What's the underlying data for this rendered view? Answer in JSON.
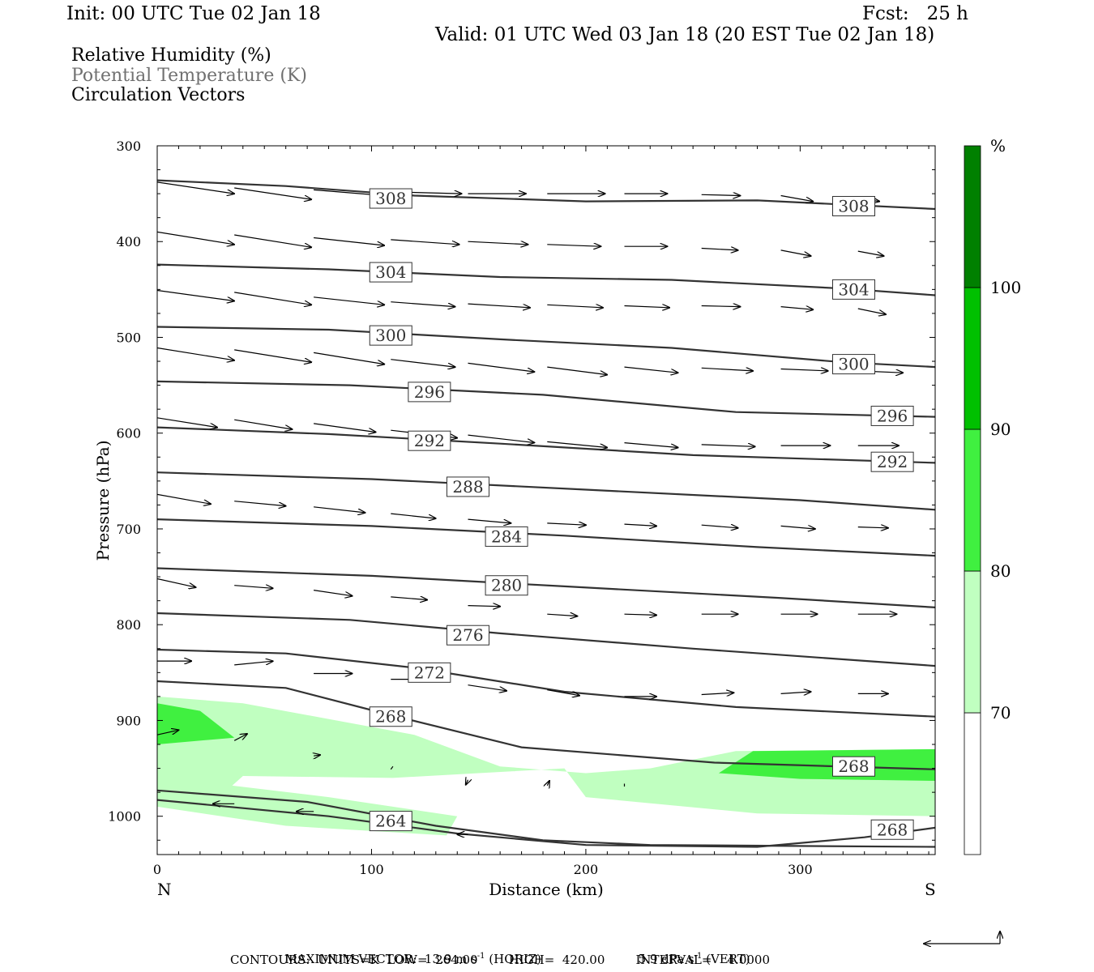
{
  "header": {
    "init": "Init: 00 UTC Tue 02 Jan 18",
    "fcst": "Fcst:   25 h",
    "valid": "Valid: 01 UTC Wed 03 Jan 18 (20 EST Tue 02 Jan 18)"
  },
  "fields": [
    {
      "label": "Relative Humidity (%)",
      "color": "#000000"
    },
    {
      "label": "Potential Temperature (K)",
      "color": "#707070"
    },
    {
      "label": "Circulation Vectors",
      "color": "#000000"
    }
  ],
  "colorbar": {
    "unit": "%",
    "ticks": [
      "70",
      "80",
      "90",
      "100"
    ],
    "bands": [
      {
        "from": 60,
        "to": 70,
        "color": "#ffffff"
      },
      {
        "from": 70,
        "to": 80,
        "color": "#c0ffc0"
      },
      {
        "from": 80,
        "to": 90,
        "color": "#40f040"
      },
      {
        "from": 90,
        "to": 100,
        "color": "#00c000"
      },
      {
        "from": 100,
        "to": 110,
        "color": "#008000"
      }
    ]
  },
  "footer": {
    "max_vector_prefix": "MAXIMUM VECTOR:  13.9 m s",
    "max_vector_horiz_suffix": " (HORIZ)",
    "max_vector_vert_prefix": "5.9 dPa s",
    "max_vector_vert_suffix": " (VERT)",
    "exponent": "-1",
    "contours": "CONTOURS:  UNITS=K  LOW=  264.00        HIGH=  420.00        INTERVAL=    4.0000"
  },
  "chart_data": {
    "type": "cross-section contour",
    "xlabel": "Distance (km)",
    "ylabel": "Pressure (hPa)",
    "xlim": [
      0,
      363
    ],
    "ylim": [
      300,
      1040
    ],
    "x_ticks": [
      "0",
      "100",
      "200",
      "300"
    ],
    "y_ticks": [
      "300",
      "400",
      "500",
      "600",
      "700",
      "800",
      "900",
      "1000"
    ],
    "left_end_label": "N",
    "right_end_label": "S",
    "theta_contours": [
      {
        "theta": "308",
        "points": [
          [
            0,
            336
          ],
          [
            60,
            342
          ],
          [
            120,
            352
          ],
          [
            200,
            358
          ],
          [
            280,
            357
          ],
          [
            363,
            366
          ]
        ],
        "labels": [
          [
            109,
            355
          ],
          [
            325,
            363
          ]
        ]
      },
      {
        "theta": "304",
        "points": [
          [
            0,
            424
          ],
          [
            80,
            429
          ],
          [
            160,
            437
          ],
          [
            240,
            440
          ],
          [
            320,
            449
          ],
          [
            363,
            456
          ]
        ],
        "labels": [
          [
            109,
            432
          ],
          [
            325,
            450
          ]
        ]
      },
      {
        "theta": "300",
        "points": [
          [
            0,
            489
          ],
          [
            80,
            492
          ],
          [
            160,
            502
          ],
          [
            240,
            511
          ],
          [
            320,
            526
          ],
          [
            363,
            531
          ]
        ],
        "labels": [
          [
            109,
            498
          ],
          [
            325,
            528
          ]
        ]
      },
      {
        "theta": "296",
        "points": [
          [
            0,
            546
          ],
          [
            90,
            550
          ],
          [
            180,
            560
          ],
          [
            270,
            578
          ],
          [
            363,
            583
          ]
        ],
        "labels": [
          [
            127,
            557
          ],
          [
            343,
            582
          ]
        ]
      },
      {
        "theta": "292",
        "points": [
          [
            0,
            594
          ],
          [
            80,
            601
          ],
          [
            160,
            611
          ],
          [
            250,
            623
          ],
          [
            363,
            631
          ]
        ],
        "labels": [
          [
            127,
            608
          ],
          [
            343,
            630
          ]
        ]
      },
      {
        "theta": "288",
        "points": [
          [
            0,
            641
          ],
          [
            100,
            648
          ],
          [
            200,
            659
          ],
          [
            300,
            670
          ],
          [
            363,
            680
          ]
        ],
        "labels": [
          [
            145,
            656
          ]
        ]
      },
      {
        "theta": "284",
        "points": [
          [
            0,
            690
          ],
          [
            100,
            697
          ],
          [
            190,
            707
          ],
          [
            280,
            719
          ],
          [
            363,
            728
          ]
        ],
        "labels": [
          [
            163,
            708
          ]
        ]
      },
      {
        "theta": "280",
        "points": [
          [
            0,
            741
          ],
          [
            100,
            749
          ],
          [
            190,
            760
          ],
          [
            290,
            772
          ],
          [
            363,
            782
          ]
        ],
        "labels": [
          [
            163,
            759
          ]
        ]
      },
      {
        "theta": "276",
        "points": [
          [
            0,
            788
          ],
          [
            90,
            795
          ],
          [
            160,
            809
          ],
          [
            250,
            825
          ],
          [
            363,
            843
          ]
        ],
        "labels": [
          [
            145,
            811
          ]
        ]
      },
      {
        "theta": "272",
        "points": [
          [
            0,
            826
          ],
          [
            60,
            830
          ],
          [
            120,
            845
          ],
          [
            190,
            870
          ],
          [
            270,
            886
          ],
          [
            363,
            896
          ]
        ],
        "labels": [
          [
            127,
            850
          ]
        ]
      },
      {
        "theta": "268",
        "points": [
          [
            0,
            859
          ],
          [
            60,
            866
          ],
          [
            110,
            895
          ],
          [
            170,
            928
          ],
          [
            260,
            944
          ],
          [
            363,
            951
          ]
        ],
        "labels": [
          [
            109,
            896
          ],
          [
            325,
            948
          ]
        ]
      },
      {
        "theta": "264",
        "points": [
          [
            0,
            973
          ],
          [
            70,
            985
          ],
          [
            130,
            1010
          ],
          [
            180,
            1025
          ],
          [
            230,
            1030
          ],
          [
            363,
            1032
          ]
        ],
        "labels": [
          [
            109,
            1005
          ]
        ]
      },
      {
        "theta": "268",
        "points": [
          [
            0,
            983
          ],
          [
            80,
            1000
          ],
          [
            140,
            1018
          ],
          [
            200,
            1030
          ],
          [
            280,
            1032
          ],
          [
            330,
            1022
          ],
          [
            363,
            1012
          ]
        ],
        "labels": [
          [
            343,
            1014
          ]
        ]
      }
    ],
    "rh_regions": [
      {
        "rh": "70-80",
        "points": [
          [
            0,
            875
          ],
          [
            40,
            882
          ],
          [
            120,
            915
          ],
          [
            160,
            948
          ],
          [
            200,
            955
          ],
          [
            230,
            950
          ],
          [
            270,
            932
          ],
          [
            363,
            930
          ],
          [
            363,
            1000
          ],
          [
            280,
            997
          ],
          [
            200,
            980
          ],
          [
            190,
            950
          ],
          [
            150,
            955
          ],
          [
            110,
            960
          ],
          [
            40,
            958
          ],
          [
            35,
            968
          ],
          [
            80,
            980
          ],
          [
            140,
            1000
          ],
          [
            135,
            1020
          ],
          [
            60,
            1010
          ],
          [
            0,
            990
          ]
        ]
      },
      {
        "rh": "80-90",
        "points": [
          [
            0,
            882
          ],
          [
            20,
            890
          ],
          [
            36,
            918
          ],
          [
            0,
            925
          ]
        ]
      },
      {
        "rh": "80-90",
        "points": [
          [
            262,
            955
          ],
          [
            278,
            932
          ],
          [
            363,
            930
          ],
          [
            363,
            963
          ],
          [
            300,
            961
          ]
        ]
      }
    ],
    "circulation_vectors": [
      {
        "x": 0,
        "p": 338,
        "dx": 36,
        "dp": 12
      },
      {
        "x": 36,
        "p": 344,
        "dx": 36,
        "dp": 12
      },
      {
        "x": 73,
        "p": 346,
        "dx": 33,
        "dp": 6
      },
      {
        "x": 109,
        "p": 348,
        "dx": 33,
        "dp": 2
      },
      {
        "x": 145,
        "p": 350,
        "dx": 27,
        "dp": 0
      },
      {
        "x": 182,
        "p": 350,
        "dx": 27,
        "dp": 0
      },
      {
        "x": 218,
        "p": 350,
        "dx": 20,
        "dp": 0
      },
      {
        "x": 254,
        "p": 351,
        "dx": 18,
        "dp": 1
      },
      {
        "x": 291,
        "p": 352,
        "dx": 15,
        "dp": 6
      },
      {
        "x": 327,
        "p": 355,
        "dx": 10,
        "dp": 3
      },
      {
        "x": 0,
        "p": 390,
        "dx": 36,
        "dp": 13
      },
      {
        "x": 36,
        "p": 393,
        "dx": 36,
        "dp": 13
      },
      {
        "x": 73,
        "p": 396,
        "dx": 33,
        "dp": 8
      },
      {
        "x": 109,
        "p": 398,
        "dx": 32,
        "dp": 5
      },
      {
        "x": 145,
        "p": 400,
        "dx": 28,
        "dp": 3
      },
      {
        "x": 182,
        "p": 403,
        "dx": 25,
        "dp": 2
      },
      {
        "x": 218,
        "p": 405,
        "dx": 20,
        "dp": 0
      },
      {
        "x": 254,
        "p": 407,
        "dx": 17,
        "dp": 2
      },
      {
        "x": 291,
        "p": 409,
        "dx": 14,
        "dp": 6
      },
      {
        "x": 327,
        "p": 410,
        "dx": 12,
        "dp": 5
      },
      {
        "x": 0,
        "p": 451,
        "dx": 36,
        "dp": 11
      },
      {
        "x": 36,
        "p": 453,
        "dx": 36,
        "dp": 13
      },
      {
        "x": 73,
        "p": 458,
        "dx": 33,
        "dp": 8
      },
      {
        "x": 109,
        "p": 463,
        "dx": 30,
        "dp": 5
      },
      {
        "x": 145,
        "p": 465,
        "dx": 29,
        "dp": 4
      },
      {
        "x": 182,
        "p": 466,
        "dx": 26,
        "dp": 3
      },
      {
        "x": 218,
        "p": 467,
        "dx": 21,
        "dp": 2
      },
      {
        "x": 254,
        "p": 467,
        "dx": 18,
        "dp": 1
      },
      {
        "x": 291,
        "p": 468,
        "dx": 15,
        "dp": 3
      },
      {
        "x": 327,
        "p": 470,
        "dx": 13,
        "dp": 6
      },
      {
        "x": 0,
        "p": 511,
        "dx": 36,
        "dp": 13
      },
      {
        "x": 36,
        "p": 513,
        "dx": 36,
        "dp": 13
      },
      {
        "x": 73,
        "p": 516,
        "dx": 33,
        "dp": 12
      },
      {
        "x": 109,
        "p": 523,
        "dx": 30,
        "dp": 8
      },
      {
        "x": 145,
        "p": 527,
        "dx": 31,
        "dp": 9
      },
      {
        "x": 182,
        "p": 531,
        "dx": 28,
        "dp": 8
      },
      {
        "x": 218,
        "p": 531,
        "dx": 25,
        "dp": 6
      },
      {
        "x": 254,
        "p": 532,
        "dx": 24,
        "dp": 3
      },
      {
        "x": 291,
        "p": 533,
        "dx": 22,
        "dp": 2
      },
      {
        "x": 327,
        "p": 535,
        "dx": 21,
        "dp": 2
      },
      {
        "x": 0,
        "p": 584,
        "dx": 28,
        "dp": 10
      },
      {
        "x": 36,
        "p": 586,
        "dx": 27,
        "dp": 10
      },
      {
        "x": 73,
        "p": 590,
        "dx": 29,
        "dp": 9
      },
      {
        "x": 109,
        "p": 597,
        "dx": 31,
        "dp": 8
      },
      {
        "x": 145,
        "p": 602,
        "dx": 31,
        "dp": 8
      },
      {
        "x": 182,
        "p": 609,
        "dx": 28,
        "dp": 6
      },
      {
        "x": 218,
        "p": 610,
        "dx": 25,
        "dp": 5
      },
      {
        "x": 254,
        "p": 612,
        "dx": 25,
        "dp": 2
      },
      {
        "x": 291,
        "p": 613,
        "dx": 23,
        "dp": 0
      },
      {
        "x": 327,
        "p": 613,
        "dx": 19,
        "dp": 0
      },
      {
        "x": 0,
        "p": 664,
        "dx": 25,
        "dp": 10
      },
      {
        "x": 36,
        "p": 671,
        "dx": 24,
        "dp": 5
      },
      {
        "x": 73,
        "p": 677,
        "dx": 24,
        "dp": 6
      },
      {
        "x": 109,
        "p": 684,
        "dx": 21,
        "dp": 5
      },
      {
        "x": 145,
        "p": 690,
        "dx": 20,
        "dp": 4
      },
      {
        "x": 182,
        "p": 694,
        "dx": 18,
        "dp": 2
      },
      {
        "x": 218,
        "p": 695,
        "dx": 15,
        "dp": 2
      },
      {
        "x": 254,
        "p": 696,
        "dx": 17,
        "dp": 3
      },
      {
        "x": 291,
        "p": 697,
        "dx": 16,
        "dp": 3
      },
      {
        "x": 327,
        "p": 698,
        "dx": 14,
        "dp": 1
      },
      {
        "x": 0,
        "p": 752,
        "dx": 18,
        "dp": 9
      },
      {
        "x": 36,
        "p": 759,
        "dx": 18,
        "dp": 3
      },
      {
        "x": 73,
        "p": 764,
        "dx": 18,
        "dp": 6
      },
      {
        "x": 109,
        "p": 771,
        "dx": 17,
        "dp": 3
      },
      {
        "x": 145,
        "p": 780,
        "dx": 15,
        "dp": 1
      },
      {
        "x": 182,
        "p": 789,
        "dx": 14,
        "dp": 2
      },
      {
        "x": 218,
        "p": 789,
        "dx": 15,
        "dp": 1
      },
      {
        "x": 254,
        "p": 789,
        "dx": 17,
        "dp": 0
      },
      {
        "x": 291,
        "p": 789,
        "dx": 17,
        "dp": 0
      },
      {
        "x": 327,
        "p": 789,
        "dx": 18,
        "dp": 0
      },
      {
        "x": 0,
        "p": 838,
        "dx": 16,
        "dp": 0
      },
      {
        "x": 36,
        "p": 842,
        "dx": 18,
        "dp": -4
      },
      {
        "x": 73,
        "p": 851,
        "dx": 18,
        "dp": 0
      },
      {
        "x": 109,
        "p": 857,
        "dx": 18,
        "dp": 0
      },
      {
        "x": 145,
        "p": 863,
        "dx": 18,
        "dp": 6
      },
      {
        "x": 182,
        "p": 868,
        "dx": 15,
        "dp": 6
      },
      {
        "x": 218,
        "p": 875,
        "dx": 15,
        "dp": 0
      },
      {
        "x": 254,
        "p": 873,
        "dx": 15,
        "dp": -2
      },
      {
        "x": 291,
        "p": 872,
        "dx": 14,
        "dp": -2
      },
      {
        "x": 327,
        "p": 872,
        "dx": 14,
        "dp": 0
      },
      {
        "x": 0,
        "p": 915,
        "dx": 10,
        "dp": -5
      },
      {
        "x": 36,
        "p": 921,
        "dx": 6,
        "dp": -7
      },
      {
        "x": 73,
        "p": 937,
        "dx": 3,
        "dp": -1
      },
      {
        "x": 109,
        "p": 951,
        "dx": 1,
        "dp": -3
      },
      {
        "x": 145,
        "p": 962,
        "dx": -1,
        "dp": 5
      },
      {
        "x": 182,
        "p": 968,
        "dx": 1,
        "dp": -5
      },
      {
        "x": 218,
        "p": 969,
        "dx": 0,
        "dp": -3
      },
      {
        "x": 254,
        "p": 965,
        "dx": 0,
        "dp": 0
      },
      {
        "x": 291,
        "p": 965,
        "dx": 0,
        "dp": 0
      },
      {
        "x": 36,
        "p": 987,
        "dx": -10,
        "dp": 0
      },
      {
        "x": 73,
        "p": 995,
        "dx": -8,
        "dp": 0
      },
      {
        "x": 145,
        "p": 1019,
        "dx": -5,
        "dp": 0
      }
    ]
  },
  "reference_vector": {
    "horiz_dx": 36,
    "vert_dp": 12
  }
}
